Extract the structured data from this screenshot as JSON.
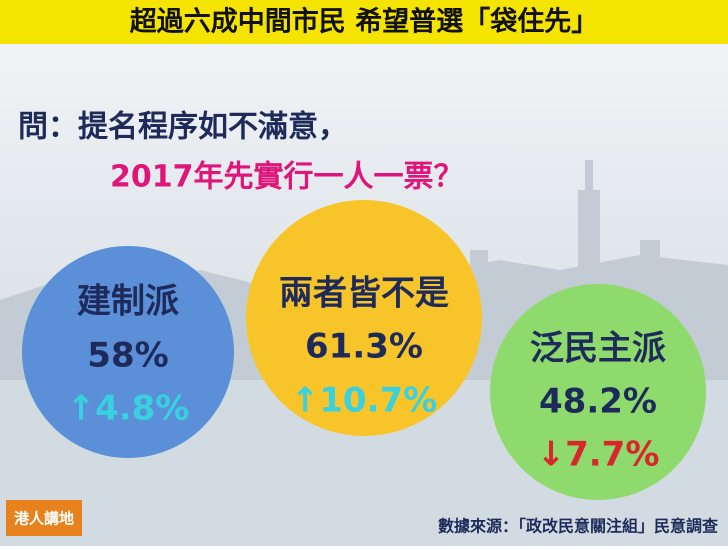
{
  "header": {
    "title": "超過六成中間市民 希望普選「袋住先」"
  },
  "question": {
    "line1": "問：提名程序如不滿意，",
    "line2": "2017年先實行一人一票？"
  },
  "groups": [
    {
      "name": "建制派",
      "value": "58%",
      "change": "↑4.8%"
    },
    {
      "name": "兩者皆不是",
      "value": "61.3%",
      "change": "↑10.7%"
    },
    {
      "name": "泛民主派",
      "value": "48.2%",
      "change": "↓7.7%"
    }
  ],
  "logo": "港人講地",
  "source": "數據來源：「政改民意關注組」民意調查"
}
